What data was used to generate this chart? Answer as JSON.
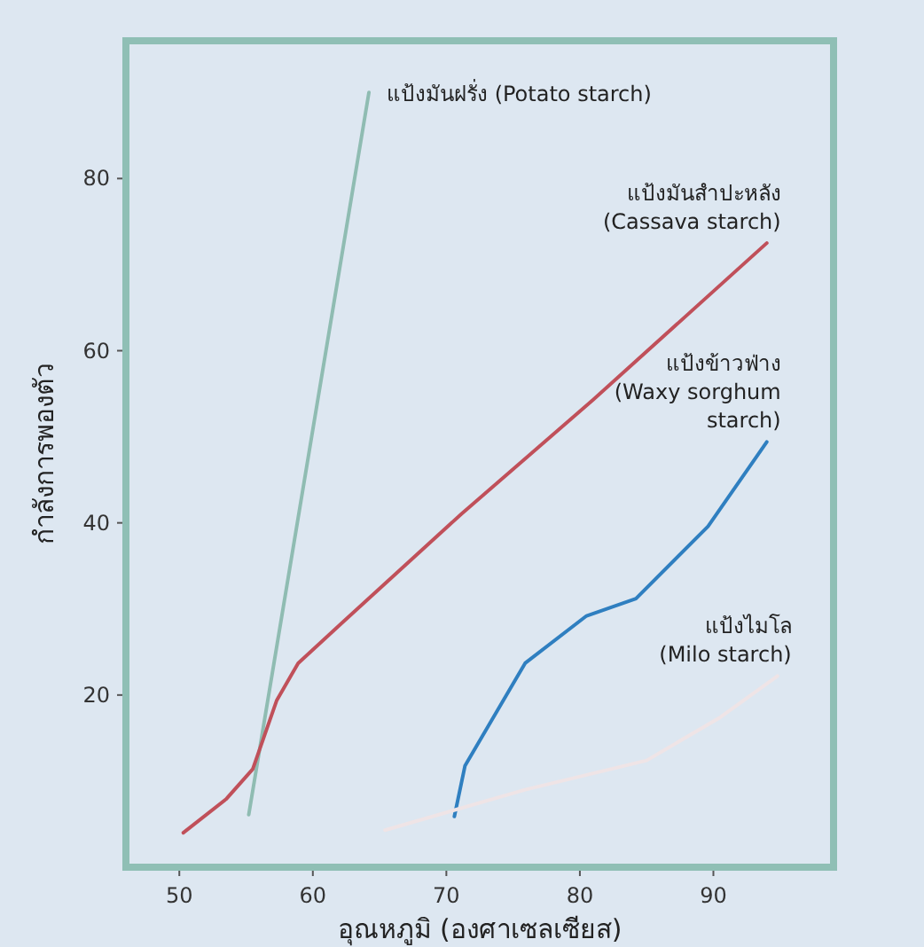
{
  "chart_data": {
    "type": "line",
    "xlabel": "อุณหภูมิ (องศาเซลเซียส)",
    "ylabel": "กำลังการพองตัว",
    "xlim": [
      46,
      99
    ],
    "ylim": [
      0,
      96
    ],
    "xticks": [
      50,
      60,
      70,
      80,
      90
    ],
    "yticks": [
      20,
      40,
      60,
      80
    ],
    "grid": false,
    "marker": "none",
    "line_style": "solid",
    "series": [
      {
        "name": "แป้งมันฝรั่ง (Potato starch)",
        "color": "#8fbcb2",
        "x": [
          55.2,
          64.2
        ],
        "values": [
          6.1,
          90
        ]
      },
      {
        "name": "แป้งมันสำปะหลัง\n(Cassava starch)",
        "color": "#c0505a",
        "x": [
          50.3,
          53.5,
          55.5,
          57.3,
          58.9,
          62.2,
          71.1,
          81,
          94
        ],
        "values": [
          4.0,
          7.9,
          11.4,
          19.4,
          23.7,
          28.4,
          41,
          54.3,
          72.5
        ]
      },
      {
        "name": "แป้งข้าวฟ่าง\n(Waxy sorghum\nstarch)",
        "color": "#2f7fc0",
        "x": [
          70.6,
          71.4,
          75.9,
          80.5,
          84.2,
          89.6,
          94
        ],
        "values": [
          5.9,
          11.8,
          23.7,
          29.2,
          31.2,
          39.6,
          49.4
        ]
      },
      {
        "name": "แป้งไมโล\n(Milo starch)",
        "color": "#efe4e6",
        "x": [
          65.4,
          75.9,
          85,
          90.4,
          94.8
        ],
        "values": [
          4.3,
          9,
          12.4,
          17.3,
          22.2
        ]
      }
    ]
  }
}
